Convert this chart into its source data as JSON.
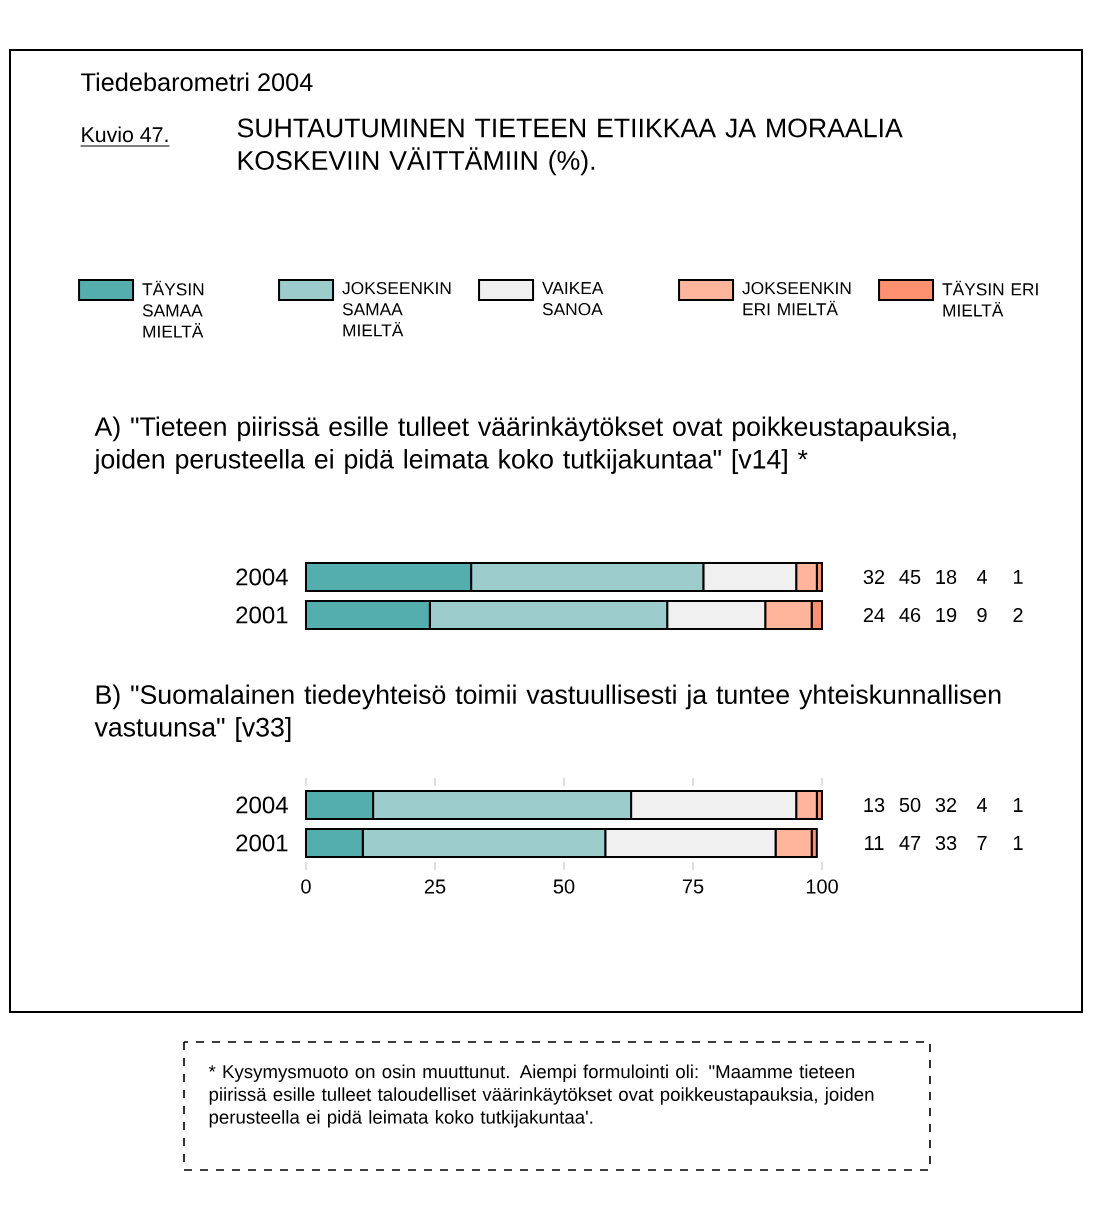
{
  "chart_data": [
    {
      "type": "bar",
      "orientation": "horizontal",
      "stacked": true,
      "data_labels": true,
      "legend": "top",
      "tick_labels": "y",
      "title": "SUHTAUTUMINEN TIETEEN ETIIKKAA JA MORAALIA KOSKEVIIN VÄITTÄMIIN (%).",
      "subtitle": "A) \"Tieteen piirissä esille tulleet väärinkäytökset ovat poikkeustapauksia, joiden perusteella ei pidä leimata koko tutkijakuntaa\" [v14] *",
      "annotations": [
        "Tiedebarometri 2004",
        "Kuvio 47."
      ],
      "categories": [
        "2004",
        "2001"
      ],
      "series": [
        {
          "name": "TÄYSIN SAMAA MIELTÄ",
          "color": "#55aeae",
          "values": [
            32,
            24
          ]
        },
        {
          "name": "JOKSEENKIN SAMAA MIELTÄ",
          "color": "#9ccccc",
          "values": [
            45,
            46
          ]
        },
        {
          "name": "VAIKEA SANOA",
          "color": "#f0f0f0",
          "values": [
            18,
            19
          ]
        },
        {
          "name": "JOKSEENKIN ERI MIELTÄ",
          "color": "#ffb49c",
          "values": [
            4,
            9
          ]
        },
        {
          "name": "TÄYSIN ERI MIELTÄ",
          "color": "#ff9070",
          "values": [
            1,
            2
          ]
        }
      ],
      "xlim": [
        0,
        100
      ],
      "xticks": [
        0,
        25,
        50,
        75,
        100
      ]
    },
    {
      "type": "bar",
      "orientation": "horizontal",
      "stacked": true,
      "data_labels": true,
      "title": "B) \"Suomalainen tiedeyhteisö toimii vastuullisesti ja tuntee yhteiskunnallisen vastuunsa\" [v33]",
      "annotations": [
        "* Kysymysmuoto on osin muuttunut. Aiempi formulointi oli: \"Maamme tieteen piirissä esille tulleet taloudelliset väärinkäytökset ovat poikkeustapauksia, joiden perusteella ei pidä leimata koko tutkijakuntaa'."
      ],
      "categories": [
        "2004",
        "2001"
      ],
      "series": [
        {
          "color": "#55aeae",
          "values": [
            13,
            11
          ]
        },
        {
          "color": "#9ccccc",
          "values": [
            50,
            47
          ]
        },
        {
          "color": "#f0f0f0",
          "values": [
            32,
            33
          ]
        },
        {
          "color": "#ffb49c",
          "values": [
            4,
            7
          ]
        },
        {
          "color": "#ff9070",
          "values": [
            1,
            1
          ]
        }
      ],
      "xlim": [
        0,
        100
      ],
      "xticks": [
        0,
        25,
        50,
        75,
        100
      ]
    }
  ]
}
